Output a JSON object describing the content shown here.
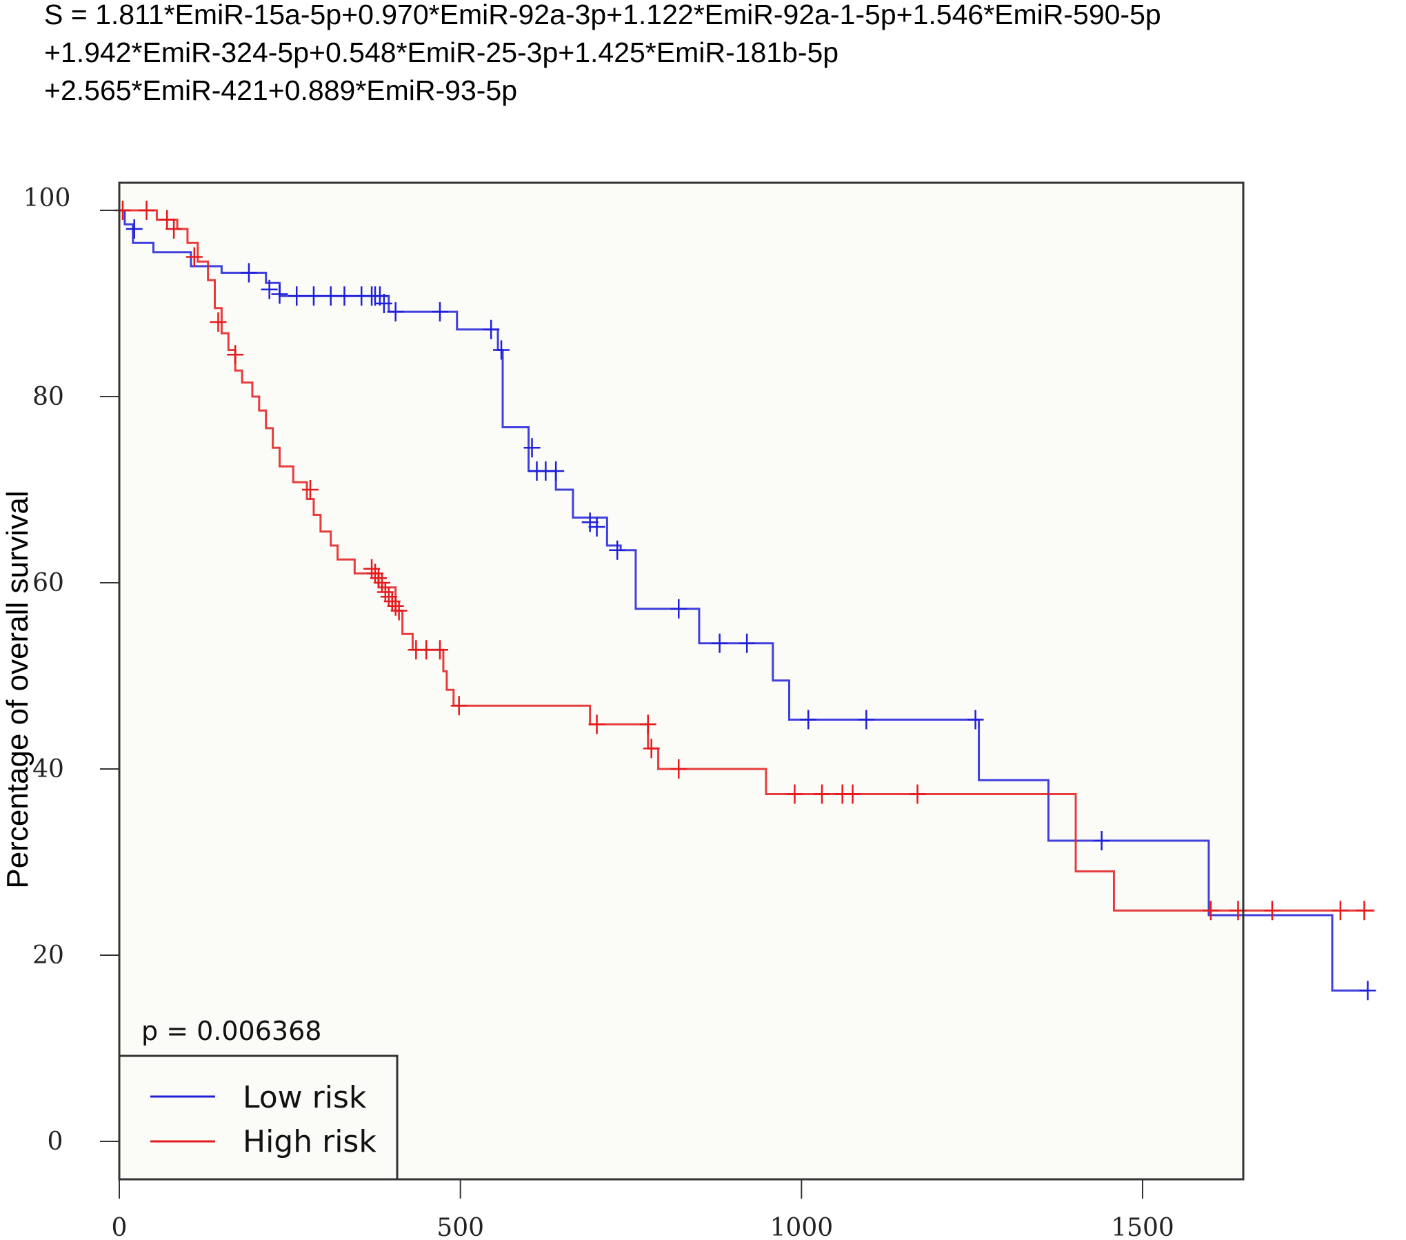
{
  "formula": {
    "line1": "S = 1.811*EmiR-15a-5p+0.970*EmiR-92a-3p+1.122*EmiR-92a-1-5p+1.546*EmiR-590-5p",
    "line2": "+1.942*EmiR-324-5p+0.548*EmiR-25-3p+1.425*EmiR-181b-5p",
    "line3": "+2.565*EmiR-421+0.889*EmiR-93-5p"
  },
  "chart_data": {
    "type": "line",
    "subtype": "kaplan-meier step curve with censor marks",
    "title": "",
    "xlabel": "",
    "ylabel": "Percentage of overall survival",
    "xlim": [
      0,
      1900
    ],
    "ylim": [
      0,
      100
    ],
    "x_ticks": [
      0,
      500,
      1000,
      1500
    ],
    "y_ticks": [
      0,
      20,
      40,
      60,
      80,
      100
    ],
    "annotation": "p = 0.006368",
    "legend_position": "bottom-left",
    "series": [
      {
        "name": "Low risk",
        "color": "#1f1fd9",
        "steps": [
          [
            0,
            100
          ],
          [
            8,
            98.5
          ],
          [
            20,
            96.5
          ],
          [
            50,
            95.5
          ],
          [
            105,
            94
          ],
          [
            150,
            93.3
          ],
          [
            215,
            92.2
          ],
          [
            235,
            90.8
          ],
          [
            395,
            89.1
          ],
          [
            495,
            87.2
          ],
          [
            555,
            85
          ],
          [
            562,
            76.7
          ],
          [
            600,
            72
          ],
          [
            640,
            70
          ],
          [
            665,
            67
          ],
          [
            715,
            64
          ],
          [
            735,
            63.5
          ],
          [
            757,
            57.2
          ],
          [
            850,
            53.5
          ],
          [
            958,
            49.5
          ],
          [
            982,
            45.3
          ],
          [
            1260,
            38.8
          ],
          [
            1362,
            32.3
          ],
          [
            1597,
            24.3
          ],
          [
            1778,
            16.2
          ],
          [
            1830,
            16.2
          ]
        ],
        "censors": [
          [
            22,
            98
          ],
          [
            190,
            93.3
          ],
          [
            220,
            91.5
          ],
          [
            235,
            91
          ],
          [
            260,
            90.8
          ],
          [
            285,
            90.8
          ],
          [
            310,
            90.8
          ],
          [
            330,
            90.8
          ],
          [
            355,
            90.8
          ],
          [
            370,
            90.8
          ],
          [
            375,
            90.8
          ],
          [
            382,
            90.8
          ],
          [
            388,
            90
          ],
          [
            405,
            89.1
          ],
          [
            470,
            89.1
          ],
          [
            545,
            87.2
          ],
          [
            560,
            85
          ],
          [
            605,
            74.5
          ],
          [
            612,
            72
          ],
          [
            625,
            72
          ],
          [
            640,
            72
          ],
          [
            690,
            66.5
          ],
          [
            700,
            66
          ],
          [
            730,
            63.5
          ],
          [
            820,
            57.2
          ],
          [
            880,
            53.5
          ],
          [
            920,
            53.5
          ],
          [
            1010,
            45.3
          ],
          [
            1095,
            45.3
          ],
          [
            1255,
            45.3
          ],
          [
            1440,
            32.3
          ],
          [
            1830,
            16.2
          ]
        ]
      },
      {
        "name": "High risk",
        "color": "#e31a1c",
        "steps": [
          [
            0,
            100
          ],
          [
            55,
            99
          ],
          [
            85,
            98
          ],
          [
            100,
            96.5
          ],
          [
            115,
            94.5
          ],
          [
            130,
            92.5
          ],
          [
            140,
            89.5
          ],
          [
            150,
            86.8
          ],
          [
            160,
            85
          ],
          [
            170,
            82.8
          ],
          [
            180,
            81.5
          ],
          [
            195,
            80
          ],
          [
            205,
            78.5
          ],
          [
            215,
            76.6
          ],
          [
            225,
            74.5
          ],
          [
            235,
            72.5
          ],
          [
            255,
            70.8
          ],
          [
            275,
            69
          ],
          [
            285,
            67.3
          ],
          [
            295,
            65.5
          ],
          [
            310,
            64
          ],
          [
            320,
            62.5
          ],
          [
            345,
            61
          ],
          [
            380,
            59.5
          ],
          [
            405,
            57
          ],
          [
            415,
            54.5
          ],
          [
            430,
            52.8
          ],
          [
            475,
            50.5
          ],
          [
            480,
            48.5
          ],
          [
            490,
            46.8
          ],
          [
            690,
            44.8
          ],
          [
            775,
            42.2
          ],
          [
            790,
            40
          ],
          [
            948,
            37.3
          ],
          [
            1402,
            29
          ],
          [
            1458,
            24.8
          ],
          [
            1840,
            24.8
          ]
        ],
        "censors": [
          [
            5,
            100
          ],
          [
            40,
            100
          ],
          [
            70,
            99
          ],
          [
            80,
            98
          ],
          [
            110,
            95
          ],
          [
            145,
            88
          ],
          [
            170,
            84.5
          ],
          [
            280,
            70
          ],
          [
            370,
            61.5
          ],
          [
            375,
            61
          ],
          [
            380,
            60.5
          ],
          [
            385,
            60
          ],
          [
            390,
            59
          ],
          [
            395,
            58.5
          ],
          [
            400,
            58
          ],
          [
            405,
            57.5
          ],
          [
            410,
            57
          ],
          [
            435,
            52.8
          ],
          [
            450,
            52.8
          ],
          [
            470,
            52.8
          ],
          [
            498,
            46.8
          ],
          [
            700,
            44.8
          ],
          [
            775,
            44.8
          ],
          [
            780,
            42.2
          ],
          [
            820,
            40
          ],
          [
            990,
            37.3
          ],
          [
            1030,
            37.3
          ],
          [
            1060,
            37.3
          ],
          [
            1075,
            37.3
          ],
          [
            1170,
            37.3
          ],
          [
            1600,
            24.8
          ],
          [
            1640,
            24.8
          ],
          [
            1690,
            24.8
          ],
          [
            1790,
            24.8
          ],
          [
            1825,
            24.8
          ]
        ]
      }
    ]
  }
}
